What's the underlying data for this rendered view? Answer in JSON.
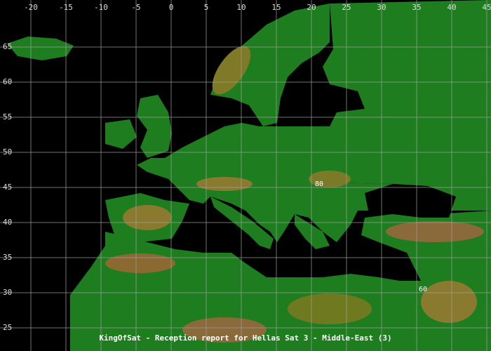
{
  "map": {
    "lon_range": [
      -24.4,
      45.6
    ],
    "lat_range": [
      21.7,
      71.7
    ],
    "lon_ticks": [
      -20,
      -15,
      -10,
      -5,
      0,
      5,
      10,
      15,
      20,
      25,
      30,
      35,
      40,
      45
    ],
    "lat_ticks": [
      65,
      60,
      55,
      50,
      45,
      40,
      35,
      30,
      25
    ],
    "contours": [
      {
        "label": "80",
        "lon": 21.1,
        "lat": 45.5
      },
      {
        "label": "60",
        "lon": 35.9,
        "lat": 30.5
      }
    ],
    "caption": "KingOfSat - Reception report for Hellas Sat 3 - Middle-East (3)"
  }
}
